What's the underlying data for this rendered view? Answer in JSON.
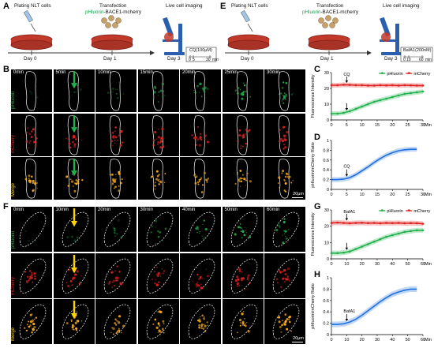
{
  "panels": {
    "A": {
      "label": "A",
      "steps": [
        "Plating NLT cells",
        "Transfection",
        "Live cell imaging"
      ],
      "transfection_prefix": "pHluorin",
      "transfection_suffix": "-BACE1-mcherry",
      "days": [
        "Day 0",
        "Day 1",
        "Day 3"
      ],
      "treatment": "CQ(100μM)",
      "ticks": [
        "0",
        "5",
        "30"
      ],
      "unit": "min"
    },
    "E": {
      "label": "E",
      "steps": [
        "Plating NLT cells",
        "Transfection",
        "Live cell imaging"
      ],
      "transfection_prefix": "pHluorin",
      "transfection_suffix": "-BACE1-mcherry",
      "days": [
        "Day 0",
        "Day 1",
        "Day 3"
      ],
      "treatment": "BafA1(200nM)",
      "ticks": [
        "0",
        "10",
        "60"
      ],
      "unit": "min"
    },
    "B": {
      "label": "B",
      "times": [
        "0min",
        "5min",
        "10min",
        "15min",
        "20min",
        "25min",
        "30min"
      ],
      "rows": [
        "pHluorin",
        "mCherry",
        "Merge"
      ],
      "drug": "CQ",
      "scale": "20μm"
    },
    "F": {
      "label": "F",
      "times": [
        "0min",
        "10min",
        "20min",
        "30min",
        "40min",
        "50min",
        "60min"
      ],
      "rows": [
        "pHluorin",
        "mCherry",
        "Merge"
      ],
      "drug": "BafA1",
      "scale": "20μm"
    }
  },
  "colors": {
    "green": "#22b14c",
    "red": "#e02020",
    "blue": "#1f6fe0",
    "dish": "#c0392b",
    "microscope": "#2b5fae",
    "arrow_yellow": "#ffd400"
  },
  "chart_data": [
    {
      "panel": "C",
      "type": "line",
      "ylabel": "Fluorescence Intensity",
      "xlabel": "Min",
      "xlim": [
        0,
        30
      ],
      "ylim": [
        0,
        30
      ],
      "xticks": [
        0,
        5,
        10,
        15,
        20,
        25,
        30
      ],
      "yticks": [
        0,
        10,
        20,
        30
      ],
      "legend_position": "top-right",
      "annotation": "CQ",
      "annotation_x": 5,
      "series": [
        {
          "name": "pHluorin",
          "color": "#22b14c",
          "x": [
            0,
            2,
            4,
            6,
            8,
            10,
            12,
            14,
            16,
            18,
            20,
            22,
            24,
            26,
            28,
            30
          ],
          "y": [
            4,
            4,
            4.5,
            5.5,
            7,
            8.5,
            10,
            11.5,
            12.5,
            13.5,
            14.5,
            15.5,
            16.5,
            17,
            17.5,
            18
          ]
        },
        {
          "name": "mCherry",
          "color": "#e02020",
          "x": [
            0,
            2,
            4,
            6,
            8,
            10,
            12,
            14,
            16,
            18,
            20,
            22,
            24,
            26,
            28,
            30
          ],
          "y": [
            22,
            22,
            22.3,
            22.2,
            22,
            22,
            21.8,
            21.8,
            22,
            21.9,
            22,
            21.8,
            22,
            21.9,
            21.8,
            21.8
          ]
        }
      ]
    },
    {
      "panel": "D",
      "type": "line",
      "ylabel": "pHluorin/mCherry Ratio",
      "xlabel": "Min",
      "xlim": [
        0,
        30
      ],
      "ylim": [
        0,
        1.0
      ],
      "xticks": [
        0,
        5,
        10,
        15,
        20,
        25,
        30
      ],
      "yticks": [
        0,
        0.2,
        0.4,
        0.6,
        0.8,
        1.0
      ],
      "annotation": "CQ",
      "annotation_x": 5,
      "series": [
        {
          "name": "",
          "color": "#1f6fe0",
          "x": [
            0,
            2,
            4,
            6,
            8,
            10,
            12,
            14,
            16,
            18,
            20,
            22,
            24,
            26,
            28
          ],
          "y": [
            0.2,
            0.2,
            0.21,
            0.24,
            0.3,
            0.38,
            0.46,
            0.55,
            0.63,
            0.7,
            0.75,
            0.79,
            0.81,
            0.82,
            0.82
          ]
        }
      ]
    },
    {
      "panel": "G",
      "type": "line",
      "ylabel": "Fluorescence Intensity",
      "xlabel": "Min",
      "xlim": [
        0,
        60
      ],
      "ylim": [
        0,
        30
      ],
      "xticks": [
        0,
        10,
        20,
        30,
        40,
        50,
        60
      ],
      "yticks": [
        0,
        10,
        20,
        30
      ],
      "legend_position": "top-right",
      "annotation": "BafA1",
      "annotation_x": 10,
      "series": [
        {
          "name": "pHluorin",
          "color": "#22b14c",
          "x": [
            0,
            4,
            8,
            12,
            16,
            20,
            24,
            28,
            32,
            36,
            40,
            44,
            48,
            52,
            56,
            60
          ],
          "y": [
            3.5,
            3.5,
            3.8,
            4.5,
            6,
            7.5,
            9,
            10.5,
            12,
            13.5,
            14.5,
            15.5,
            16.5,
            17,
            17.5,
            17.5
          ]
        },
        {
          "name": "mCherry",
          "color": "#e02020",
          "x": [
            0,
            4,
            8,
            12,
            16,
            20,
            24,
            28,
            32,
            36,
            40,
            44,
            48,
            52,
            56,
            60
          ],
          "y": [
            22,
            22.2,
            22,
            21.8,
            22,
            22.1,
            21.9,
            22,
            21.8,
            22,
            21.9,
            22,
            21.8,
            21.9,
            21.8,
            21.5
          ]
        }
      ]
    },
    {
      "panel": "H",
      "type": "line",
      "ylabel": "pHluorin/mCherry Ratio",
      "xlabel": "Min",
      "xlim": [
        0,
        60
      ],
      "ylim": [
        0,
        1.0
      ],
      "xticks": [
        0,
        10,
        20,
        30,
        40,
        50,
        60
      ],
      "yticks": [
        0,
        0.2,
        0.4,
        0.6,
        0.8,
        1.0
      ],
      "annotation": "BafA1",
      "annotation_x": 10,
      "series": [
        {
          "name": "",
          "color": "#1f6fe0",
          "x": [
            0,
            4,
            8,
            12,
            16,
            20,
            24,
            28,
            32,
            36,
            40,
            44,
            48,
            52,
            56
          ],
          "y": [
            0.18,
            0.18,
            0.19,
            0.22,
            0.27,
            0.34,
            0.42,
            0.5,
            0.58,
            0.65,
            0.71,
            0.75,
            0.78,
            0.8,
            0.8
          ]
        }
      ]
    }
  ]
}
